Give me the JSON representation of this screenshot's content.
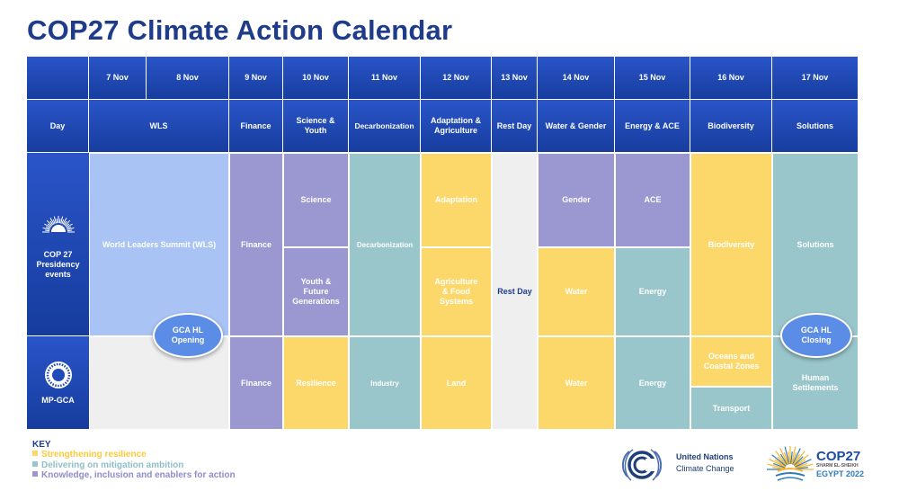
{
  "title": "COP27 Climate Action Calendar",
  "colors": {
    "header_blue": "#1f4bb8",
    "wls_light_blue": "#a9c3f4",
    "purple": "#9a97d1",
    "teal": "#99c6cb",
    "yellow": "#fcd86a",
    "grey": "#efefef",
    "title_blue": "#1f3c8a"
  },
  "headers": {
    "dates": [
      "7 Nov",
      "8 Nov",
      "9 Nov",
      "10 Nov",
      "11 Nov",
      "12 Nov",
      "13 Nov",
      "14 Nov",
      "15 Nov",
      "16 Nov",
      "17 Nov"
    ],
    "day_label": "Day",
    "themes": [
      "WLS",
      "Finance",
      "Science &\nYouth",
      "Decarbonization",
      "Adaptation &\nAgriculture",
      "Rest Day",
      "Water & Gender",
      "Energy & ACE",
      "Biodiversity",
      "Solutions"
    ]
  },
  "rows": {
    "presidency": {
      "label": "COP 27\nPresidency\nevents",
      "icon": "cop27-sun-icon"
    },
    "mpgca": {
      "label": "MP-GCA",
      "icon": "mp-gca-logo-icon"
    }
  },
  "blocks": {
    "wls": "World Leaders Summit (WLS)",
    "finance_pres": "Finance",
    "science": "Science",
    "youth": "Youth &\nFuture\nGenerations",
    "decarb": "Decarbonization",
    "adaptation": "Adaptation",
    "agriculture": "Agriculture\n& Food\nSystems",
    "rest_day": "Rest Day",
    "gender": "Gender",
    "water_pres": "Water",
    "ace": "ACE",
    "energy_pres": "Energy",
    "biodiversity": "Biodiversity",
    "solutions": "Solutions",
    "finance_mp": "Finance",
    "resilience": "Resilience",
    "industry": "Industry",
    "land": "Land",
    "water_mp": "Water",
    "energy_mp": "Energy",
    "oceans": "Oceans and\nCoastal Zones",
    "transport": "Transport",
    "human": "Human\nSettlements"
  },
  "ovals": {
    "opening": "GCA HL\nOpening",
    "closing": "GCA HL\nClosing"
  },
  "key": {
    "title": "KEY",
    "items": [
      {
        "label": "Strengthening resilience",
        "color": "#fcd86a"
      },
      {
        "label": "Delivering on mitigation ambition",
        "color": "#99c6cb"
      },
      {
        "label": "Knowledge, inclusion and enablers for action",
        "color": "#9a97d1"
      }
    ]
  },
  "logos": {
    "un_line1": "United Nations",
    "un_line2": "Climate Change",
    "cop_main": "COP27",
    "cop_sub1": "SHARM EL-SHEIKH",
    "cop_sub2": "EGYPT 2022"
  }
}
